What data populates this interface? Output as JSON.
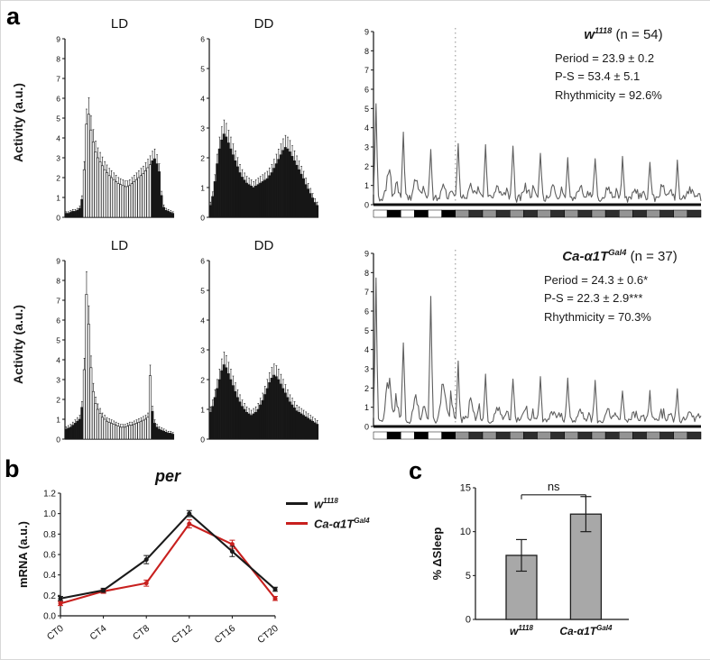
{
  "labels": {
    "a": "a",
    "b": "b",
    "c": "c"
  },
  "panel_a": {
    "y_axis_label": "Activity (a.u.)",
    "rows": [
      {
        "genotype": {
          "base": "w",
          "sup": "1118"
        },
        "n_text": " (n = 54)",
        "stats": [
          "Period = 23.9 ± 0.2",
          "P-S = 53.4 ± 5.1",
          "Rhythmicity = 92.6%"
        ]
      },
      {
        "genotype": {
          "base": "Ca-α1T",
          "sup": "Gal4"
        },
        "n_text": " (n = 37)",
        "stats": [
          "Period = 24.3 ± 0.6*",
          "P-S = 22.3 ± 2.9***",
          "Rhythmicity = 70.3%"
        ]
      }
    ]
  },
  "panel_b": {
    "legend": [
      {
        "label": {
          "base": "w",
          "sup": "1118"
        },
        "color": "#1a1a1a"
      },
      {
        "label": {
          "base": "Ca-α1T",
          "sup": "Gal4"
        },
        "color": "#c8201e"
      }
    ]
  },
  "chart_data": [
    {
      "id": "w1118-ld",
      "kind": "activity",
      "type": "bar",
      "title": "LD",
      "ylim": [
        0,
        9
      ],
      "ytick": 1,
      "values": [
        0.2,
        0.2,
        0.25,
        0.3,
        0.3,
        0.35,
        0.45,
        0.9,
        2.4,
        4.7,
        5.2,
        4.4,
        3.8,
        3.3,
        3.0,
        2.8,
        2.6,
        2.4,
        2.25,
        2.1,
        2.0,
        1.9,
        1.8,
        1.7,
        1.65,
        1.6,
        1.55,
        1.55,
        1.6,
        1.7,
        1.8,
        1.9,
        2.0,
        2.1,
        2.2,
        2.35,
        2.5,
        2.65,
        2.85,
        2.95,
        2.7,
        2.3,
        1.1,
        0.5,
        0.35,
        0.3,
        0.25,
        0.2
      ],
      "dark_ranges": [
        [
          0,
          7
        ],
        [
          38,
          47
        ]
      ]
    },
    {
      "id": "w1118-dd",
      "kind": "activity",
      "type": "bar",
      "title": "DD",
      "ylim": [
        0,
        6
      ],
      "ytick": 1,
      "values": [
        0.4,
        0.7,
        1.2,
        1.8,
        2.3,
        2.6,
        2.8,
        2.7,
        2.5,
        2.3,
        2.1,
        1.9,
        1.7,
        1.5,
        1.35,
        1.25,
        1.15,
        1.1,
        1.05,
        1.0,
        1.05,
        1.1,
        1.15,
        1.2,
        1.25,
        1.3,
        1.4,
        1.5,
        1.65,
        1.8,
        1.95,
        2.1,
        2.25,
        2.35,
        2.3,
        2.2,
        2.05,
        1.9,
        1.75,
        1.6,
        1.45,
        1.3,
        1.1,
        0.95,
        0.8,
        0.65,
        0.5,
        0.4
      ],
      "dark_ranges": [
        [
          0,
          47
        ]
      ]
    },
    {
      "id": "w1118-free",
      "kind": "free",
      "type": "line",
      "ylim": [
        0,
        9
      ],
      "ytick": 1,
      "days": 12,
      "ld_days": 3,
      "seed": 11,
      "day_peaks": [
        5.1,
        3.4,
        2.5,
        3.0,
        2.7,
        2.9,
        2.5,
        2.3,
        2.2,
        2.1,
        2.0,
        1.9
      ]
    },
    {
      "id": "ca-ld",
      "kind": "activity",
      "type": "bar",
      "title": "LD",
      "ylim": [
        0,
        9
      ],
      "ytick": 1,
      "values": [
        0.5,
        0.55,
        0.6,
        0.7,
        0.8,
        0.9,
        1.0,
        1.6,
        3.5,
        7.3,
        5.8,
        3.6,
        2.4,
        1.8,
        1.5,
        1.3,
        1.1,
        1.0,
        0.9,
        0.85,
        0.8,
        0.75,
        0.7,
        0.65,
        0.6,
        0.6,
        0.6,
        0.65,
        0.7,
        0.7,
        0.75,
        0.8,
        0.85,
        0.9,
        0.95,
        1.0,
        1.1,
        3.2,
        1.4,
        0.8,
        0.6,
        0.5,
        0.45,
        0.4,
        0.35,
        0.3,
        0.3,
        0.25
      ],
      "dark_ranges": [
        [
          0,
          7
        ],
        [
          38,
          47
        ]
      ]
    },
    {
      "id": "ca-dd",
      "kind": "activity",
      "type": "bar",
      "title": "DD",
      "ylim": [
        0,
        6
      ],
      "ytick": 1,
      "values": [
        0.9,
        1.1,
        1.4,
        1.7,
        2.0,
        2.3,
        2.5,
        2.4,
        2.2,
        2.0,
        1.8,
        1.6,
        1.4,
        1.25,
        1.1,
        1.0,
        0.9,
        0.85,
        0.8,
        0.85,
        0.9,
        1.0,
        1.15,
        1.3,
        1.5,
        1.7,
        1.9,
        2.05,
        2.15,
        2.1,
        2.0,
        1.85,
        1.7,
        1.55,
        1.4,
        1.25,
        1.15,
        1.05,
        0.95,
        0.9,
        0.85,
        0.8,
        0.75,
        0.7,
        0.65,
        0.6,
        0.55,
        0.5
      ],
      "dark_ranges": [
        [
          0,
          47
        ]
      ]
    },
    {
      "id": "ca-free",
      "kind": "free",
      "type": "line",
      "ylim": [
        0,
        9
      ],
      "ytick": 1,
      "days": 12,
      "ld_days": 3,
      "seed": 23,
      "day_peaks": [
        7.4,
        4.2,
        6.6,
        3.1,
        2.6,
        2.3,
        2.1,
        2.0,
        1.9,
        1.7,
        1.6,
        1.5
      ]
    },
    {
      "id": "per-mrna",
      "kind": "per",
      "type": "line",
      "title": "per",
      "ylabel": "mRNA (a.u.)",
      "ylim": [
        0,
        1.2
      ],
      "ytick": 0.2,
      "categories": [
        "CT0",
        "CT4",
        "CT8",
        "CT12",
        "CT16",
        "CT20"
      ],
      "series": [
        {
          "name": "w1118",
          "color": "#1a1a1a",
          "values": [
            0.17,
            0.25,
            0.55,
            1.0,
            0.63,
            0.26
          ],
          "errors": [
            0.02,
            0.02,
            0.04,
            0.03,
            0.05,
            0.02
          ]
        },
        {
          "name": "Ca-a1T-Gal4",
          "color": "#c8201e",
          "values": [
            0.12,
            0.24,
            0.32,
            0.9,
            0.7,
            0.17
          ],
          "errors": [
            0.02,
            0.02,
            0.03,
            0.04,
            0.04,
            0.02
          ]
        }
      ]
    },
    {
      "id": "sleep",
      "kind": "sleep",
      "type": "bar",
      "ylabel": "% ΔSleep",
      "ylim": [
        0,
        15
      ],
      "ytick": 5,
      "categories": [
        {
          "base": "w",
          "sup": "1118"
        },
        {
          "base": "Ca-α1T",
          "sup": "Gal4"
        }
      ],
      "values": [
        7.3,
        12.0
      ],
      "errors": [
        1.8,
        2.0
      ],
      "annotation": "ns",
      "bar_color": "#a8a8a8"
    }
  ]
}
